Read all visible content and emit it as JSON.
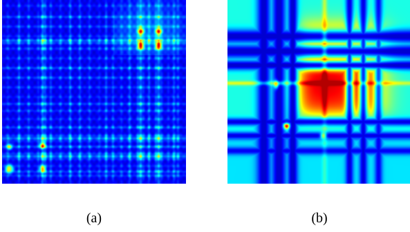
{
  "figure": {
    "panels": [
      {
        "id": "a",
        "caption": "(a)",
        "colormap": "jet"
      },
      {
        "id": "b",
        "caption": "(b)",
        "colormap": "jet"
      }
    ]
  }
}
